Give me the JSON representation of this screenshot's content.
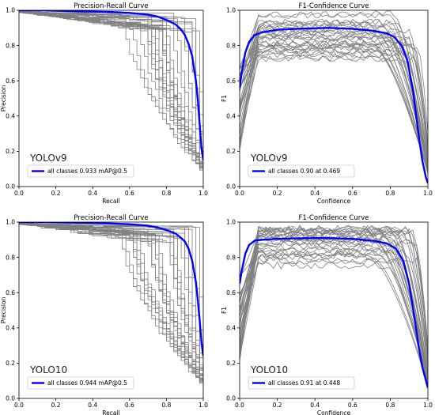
{
  "colors": {
    "background": "#ffffff",
    "class_curves": "#808080",
    "all_classes": "#0000ff",
    "axes": "#000000"
  },
  "chart_data": [
    {
      "type": "line",
      "title": "Precision-Recall Curve",
      "xlabel": "Recall",
      "ylabel": "Precision",
      "xlim": [
        0,
        1
      ],
      "ylim": [
        0,
        1
      ],
      "xticks": [
        "0.0",
        "0.2",
        "0.4",
        "0.6",
        "0.8",
        "1.0"
      ],
      "yticks": [
        "0.0",
        "0.2",
        "0.4",
        "0.6",
        "0.8",
        "1.0"
      ],
      "grid": false,
      "model_label": "YOLOv9",
      "legend_placement": "lower-left",
      "legend": "all classes 0.933 mAP@0.5",
      "series": [
        {
          "name": "all classes 0.933 mAP@0.5",
          "x": [
            0,
            0.1,
            0.3,
            0.5,
            0.6,
            0.7,
            0.75,
            0.8,
            0.85,
            0.88,
            0.9,
            0.92,
            0.94,
            0.96,
            0.97,
            0.98,
            0.99,
            1.0
          ],
          "y": [
            1.0,
            1.0,
            0.995,
            0.99,
            0.985,
            0.975,
            0.965,
            0.945,
            0.92,
            0.89,
            0.86,
            0.81,
            0.74,
            0.6,
            0.5,
            0.36,
            0.22,
            0.15
          ]
        }
      ]
    },
    {
      "type": "line",
      "title": "F1-Confidence Curve",
      "xlabel": "Confidence",
      "ylabel": "F1",
      "xlim": [
        0,
        1
      ],
      "ylim": [
        0,
        1
      ],
      "xticks": [
        "0.0",
        "0.2",
        "0.4",
        "0.6",
        "0.8",
        "1.0"
      ],
      "yticks": [
        "0.0",
        "0.2",
        "0.4",
        "0.6",
        "0.8",
        "1.0"
      ],
      "grid": false,
      "model_label": "YOLOv9",
      "legend_placement": "lower-left",
      "legend": "all classes 0.90 at 0.469",
      "series": [
        {
          "name": "all classes 0.90 at 0.469",
          "x": [
            0,
            0.01,
            0.03,
            0.05,
            0.08,
            0.12,
            0.2,
            0.3,
            0.469,
            0.6,
            0.7,
            0.78,
            0.82,
            0.86,
            0.89,
            0.92,
            0.95,
            0.97,
            0.99,
            1.0
          ],
          "y": [
            0.56,
            0.64,
            0.76,
            0.82,
            0.86,
            0.875,
            0.89,
            0.895,
            0.9,
            0.895,
            0.885,
            0.87,
            0.85,
            0.8,
            0.72,
            0.55,
            0.3,
            0.15,
            0.05,
            0.02
          ]
        }
      ]
    },
    {
      "type": "line",
      "title": "Precision-Recall Curve",
      "xlabel": "Recall",
      "ylabel": "Precision",
      "xlim": [
        0,
        1
      ],
      "ylim": [
        0,
        1
      ],
      "xticks": [
        "0.0",
        "0.2",
        "0.4",
        "0.6",
        "0.8",
        "1.0"
      ],
      "yticks": [
        "0.0",
        "0.2",
        "0.4",
        "0.6",
        "0.8",
        "1.0"
      ],
      "grid": false,
      "model_label": "YOLO10",
      "legend_placement": "lower-left",
      "legend": "all classes 0.944 mAP@0.5",
      "series": [
        {
          "name": "all classes 0.944 mAP@0.5",
          "x": [
            0,
            0.1,
            0.3,
            0.5,
            0.6,
            0.7,
            0.75,
            0.8,
            0.85,
            0.88,
            0.9,
            0.92,
            0.94,
            0.96,
            0.97,
            0.98,
            0.99,
            1.0
          ],
          "y": [
            1.0,
            1.0,
            0.997,
            0.992,
            0.988,
            0.98,
            0.97,
            0.955,
            0.935,
            0.91,
            0.89,
            0.85,
            0.78,
            0.66,
            0.56,
            0.45,
            0.32,
            0.24
          ]
        }
      ]
    },
    {
      "type": "line",
      "title": "F1-Confidence Curve",
      "xlabel": "Confidence",
      "ylabel": "F1",
      "xlim": [
        0,
        1
      ],
      "ylim": [
        0,
        1
      ],
      "xticks": [
        "0.0",
        "0.2",
        "0.4",
        "0.6",
        "0.8",
        "1.0"
      ],
      "yticks": [
        "0.0",
        "0.2",
        "0.4",
        "0.6",
        "0.8",
        "1.0"
      ],
      "grid": false,
      "model_label": "YOLO10",
      "legend_placement": "lower-left",
      "legend": "all classes 0.91 at 0.448",
      "series": [
        {
          "name": "all classes 0.91 at 0.448",
          "x": [
            0,
            0.01,
            0.03,
            0.05,
            0.08,
            0.12,
            0.2,
            0.3,
            0.448,
            0.6,
            0.7,
            0.78,
            0.83,
            0.87,
            0.9,
            0.93,
            0.95,
            0.97,
            0.99,
            1.0
          ],
          "y": [
            0.65,
            0.72,
            0.82,
            0.87,
            0.895,
            0.9,
            0.905,
            0.908,
            0.91,
            0.905,
            0.895,
            0.88,
            0.85,
            0.78,
            0.65,
            0.45,
            0.3,
            0.18,
            0.1,
            0.06
          ]
        }
      ]
    }
  ]
}
